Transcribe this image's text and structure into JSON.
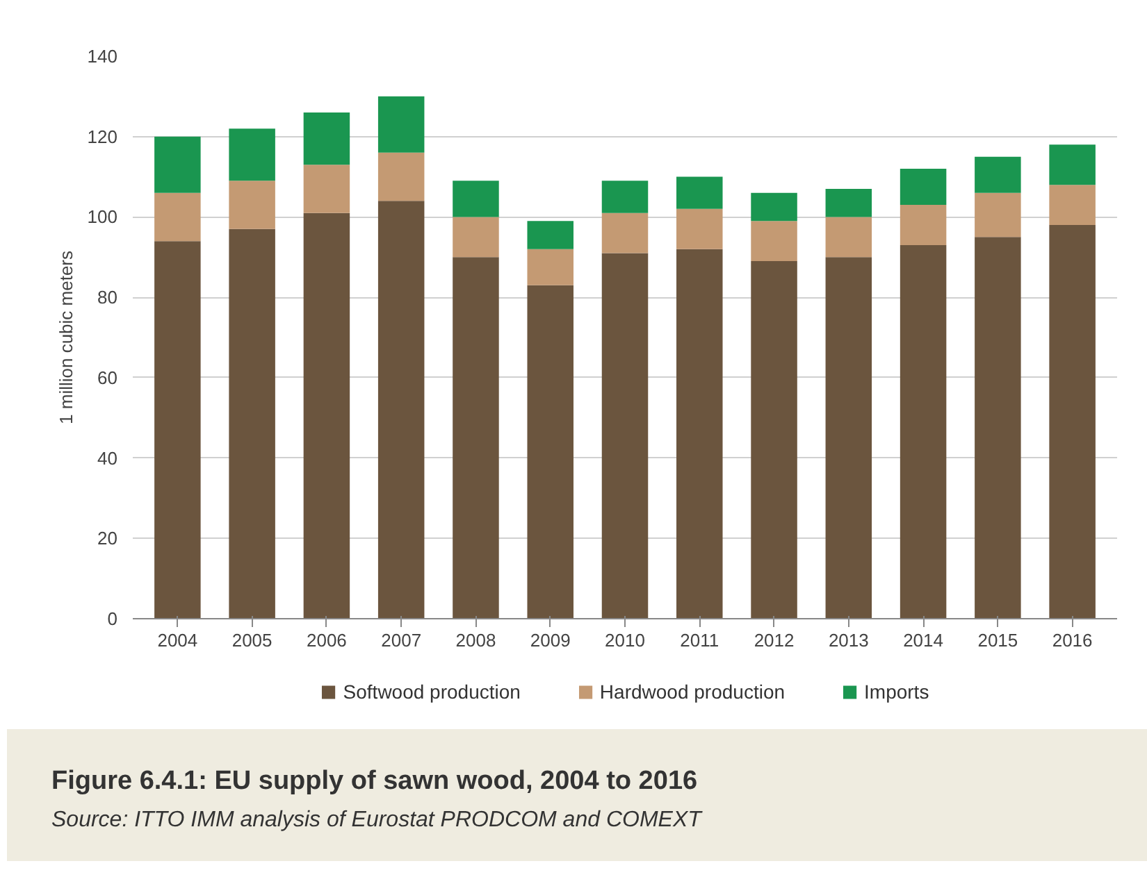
{
  "chart_data": {
    "type": "bar",
    "title": "Figure 6.4.1: EU supply of sawn wood, 2004 to 2016",
    "ylabel": "1 million cubic meters",
    "annotations": [
      "Source: ITTO IMM analysis of Eurostat PRODCOM and COMEXT"
    ],
    "categories": [
      "2004",
      "2005",
      "2006",
      "2007",
      "2008",
      "2009",
      "2010",
      "2011",
      "2012",
      "2013",
      "2014",
      "2015",
      "2016"
    ],
    "stacked": true,
    "ylim": [
      0,
      140
    ],
    "yticks": [
      0,
      20,
      40,
      60,
      80,
      100,
      120,
      140
    ],
    "grid": "y",
    "legend": "bottom",
    "series": [
      {
        "name": "Softwood production",
        "color": "#6b553e",
        "values": [
          94,
          97,
          101,
          104,
          90,
          83,
          91,
          92,
          89,
          90,
          93,
          95,
          98
        ]
      },
      {
        "name": "Hardwood production",
        "color": "#c49a73",
        "values": [
          12,
          12,
          12,
          12,
          10,
          9,
          10,
          10,
          10,
          10,
          10,
          11,
          10
        ]
      },
      {
        "name": "Imports",
        "color": "#1a9650",
        "values": [
          14,
          13,
          13,
          14,
          9,
          7,
          8,
          8,
          7,
          7,
          9,
          9,
          10
        ]
      }
    ]
  }
}
